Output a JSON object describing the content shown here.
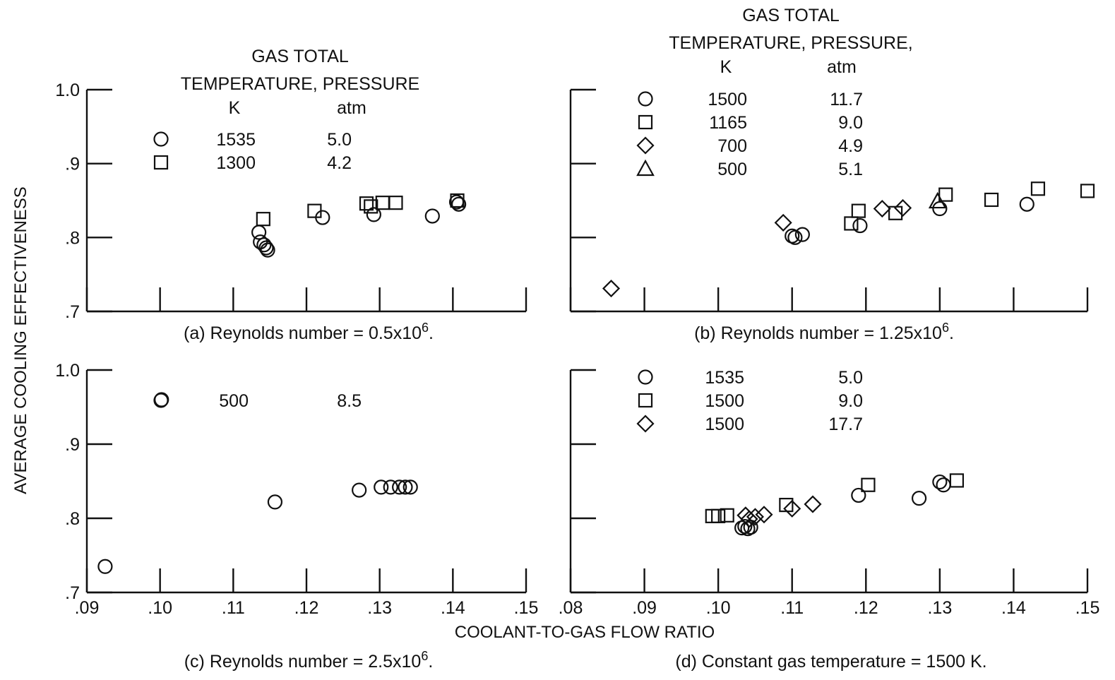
{
  "figure": {
    "ylabel": "AVERAGE COOLING EFFECTIVENESS",
    "xlabel": "COOLANT-TO-GAS FLOW RATIO"
  },
  "chart_data": [
    {
      "type": "scatter",
      "caption": "(a) Reynolds number = 0.5x10",
      "caption_exp": "6",
      "caption_end": ".",
      "xlim": [
        0.09,
        0.15
      ],
      "ylim": [
        0.7,
        1.0
      ],
      "x_ticks": [
        ".09",
        ".10",
        ".11",
        ".12",
        ".13",
        ".14",
        ".15"
      ],
      "x_tick_values": [
        0.09,
        0.1,
        0.11,
        0.12,
        0.13,
        0.14,
        0.15
      ],
      "y_ticks": [
        ".7",
        ".8",
        ".9",
        "1.0"
      ],
      "y_tick_values": [
        0.7,
        0.8,
        0.9,
        1.0
      ],
      "show_x_tick_labels": false,
      "show_y_tick_labels": true,
      "legend_header": [
        "GAS TOTAL",
        "TEMPERATURE,",
        "PRESSURE",
        "K",
        "atm"
      ],
      "series": [
        {
          "marker": "circle",
          "temperature": "1535",
          "pressure": "5.0",
          "x": [
            0.1135,
            0.1137,
            0.1142,
            0.1145,
            0.1147,
            0.1222,
            0.1292,
            0.1372,
            0.1405,
            0.1408
          ],
          "y": [
            0.807,
            0.794,
            0.79,
            0.786,
            0.783,
            0.827,
            0.831,
            0.829,
            0.848,
            0.845
          ]
        },
        {
          "marker": "square",
          "temperature": "1300",
          "pressure": "4.2",
          "x": [
            0.1141,
            0.1211,
            0.1282,
            0.1288,
            0.1304,
            0.1322,
            0.1406
          ],
          "y": [
            0.825,
            0.836,
            0.846,
            0.842,
            0.847,
            0.847,
            0.85
          ]
        }
      ]
    },
    {
      "type": "scatter",
      "caption": "(b) Reynolds number = 1.25x10",
      "caption_exp": "6",
      "caption_end": ".",
      "xlim": [
        0.08,
        0.15
      ],
      "ylim": [
        0.7,
        1.0
      ],
      "x_ticks": [
        ".08",
        ".09",
        ".10",
        ".11",
        ".12",
        ".13",
        ".14",
        ".15"
      ],
      "x_tick_values": [
        0.08,
        0.09,
        0.1,
        0.11,
        0.12,
        0.13,
        0.14,
        0.15
      ],
      "y_ticks": [
        ".7",
        ".8",
        ".9",
        "1.0"
      ],
      "y_tick_values": [
        0.7,
        0.8,
        0.9,
        1.0
      ],
      "show_x_tick_labels": false,
      "show_y_tick_labels": false,
      "legend_header": [
        "GAS TOTAL",
        "TEMPERATURE,",
        "PRESSURE,",
        "K",
        "atm"
      ],
      "series": [
        {
          "marker": "circle",
          "temperature": "1500",
          "pressure": "11.7",
          "x": [
            0.11,
            0.1104,
            0.1114,
            0.1192,
            0.13,
            0.1418
          ],
          "y": [
            0.802,
            0.8,
            0.804,
            0.816,
            0.839,
            0.845
          ]
        },
        {
          "marker": "square",
          "temperature": "1165",
          "pressure": "9.0",
          "x": [
            0.118,
            0.119,
            0.124,
            0.1308,
            0.137,
            0.1433,
            0.15
          ],
          "y": [
            0.819,
            0.836,
            0.833,
            0.858,
            0.851,
            0.866,
            0.863
          ]
        },
        {
          "marker": "diamond",
          "temperature": "700",
          "pressure": "4.9",
          "x": [
            0.0855,
            0.1088,
            0.1222,
            0.125
          ],
          "y": [
            0.731,
            0.82,
            0.839,
            0.84
          ]
        },
        {
          "marker": "triangle",
          "temperature": "500",
          "pressure": "5.1",
          "x": [
            0.1297
          ],
          "y": [
            0.849
          ]
        }
      ]
    },
    {
      "type": "scatter",
      "caption": "(c) Reynolds number = 2.5x10",
      "caption_exp": "6",
      "caption_end": ".",
      "xlim": [
        0.09,
        0.15
      ],
      "ylim": [
        0.7,
        1.0
      ],
      "x_ticks": [
        ".09",
        ".10",
        ".11",
        ".12",
        ".13",
        ".14",
        ".15"
      ],
      "x_tick_values": [
        0.09,
        0.1,
        0.11,
        0.12,
        0.13,
        0.14,
        0.15
      ],
      "y_ticks": [
        ".7",
        ".8",
        ".9",
        "1.0"
      ],
      "y_tick_values": [
        0.7,
        0.8,
        0.9,
        1.0
      ],
      "show_x_tick_labels": true,
      "show_y_tick_labels": true,
      "legend_header": [],
      "series": [
        {
          "marker": "circle",
          "temperature": "500",
          "pressure": "8.5",
          "x": [
            0.0925,
            0.1002,
            0.1157,
            0.1272,
            0.1302,
            0.1315,
            0.1327,
            0.1335,
            0.1342
          ],
          "y": [
            0.735,
            0.96,
            0.822,
            0.838,
            0.842,
            0.842,
            0.842,
            0.842,
            0.842
          ]
        }
      ]
    },
    {
      "type": "scatter",
      "caption": "(d) Constant gas temperature = 1500 K.",
      "caption_exp": "",
      "caption_end": "",
      "xlim": [
        0.08,
        0.15
      ],
      "ylim": [
        0.7,
        1.0
      ],
      "x_ticks": [
        ".08",
        ".09",
        ".10",
        ".11",
        ".12",
        ".13",
        ".14",
        ".15"
      ],
      "x_tick_values": [
        0.08,
        0.09,
        0.1,
        0.11,
        0.12,
        0.13,
        0.14,
        0.15
      ],
      "y_ticks": [
        ".7",
        ".8",
        ".9",
        "1.0"
      ],
      "y_tick_values": [
        0.7,
        0.8,
        0.9,
        1.0
      ],
      "show_x_tick_labels": true,
      "show_y_tick_labels": false,
      "legend_header": [],
      "series": [
        {
          "marker": "circle",
          "temperature": "1535",
          "pressure": "5.0",
          "x": [
            0.1032,
            0.1036,
            0.104,
            0.1044,
            0.119,
            0.1272,
            0.13,
            0.1305
          ],
          "y": [
            0.787,
            0.789,
            0.786,
            0.788,
            0.831,
            0.827,
            0.849,
            0.845
          ]
        },
        {
          "marker": "square",
          "temperature": "1500",
          "pressure": "9.0",
          "x": [
            0.0992,
            0.1,
            0.1012,
            0.1092,
            0.1203,
            0.1323
          ],
          "y": [
            0.803,
            0.803,
            0.804,
            0.818,
            0.845,
            0.851
          ]
        },
        {
          "marker": "diamond",
          "temperature": "1500",
          "pressure": "17.7",
          "x": [
            0.1037,
            0.1042,
            0.105,
            0.1062,
            0.11,
            0.1128
          ],
          "y": [
            0.804,
            0.799,
            0.802,
            0.805,
            0.813,
            0.819
          ]
        }
      ]
    }
  ]
}
